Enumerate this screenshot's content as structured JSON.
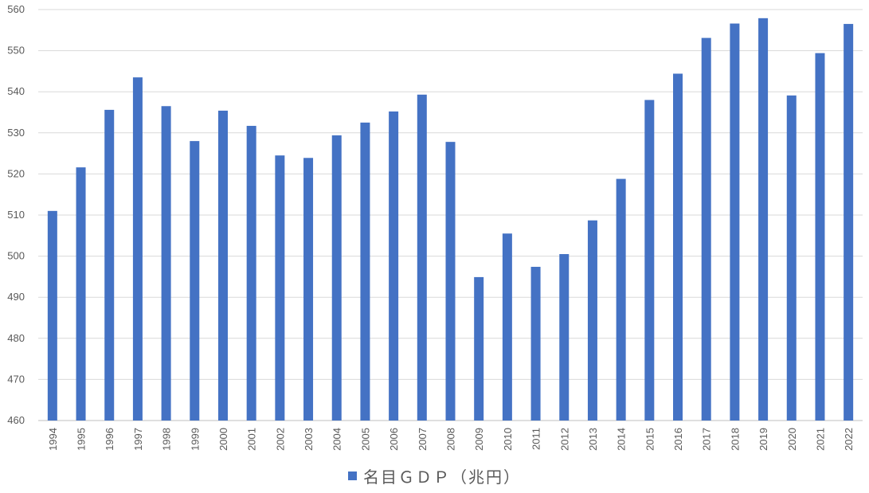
{
  "chart_data": {
    "type": "bar",
    "categories": [
      "1994",
      "1995",
      "1996",
      "1997",
      "1998",
      "1999",
      "2000",
      "2001",
      "2002",
      "2003",
      "2004",
      "2005",
      "2006",
      "2007",
      "2008",
      "2009",
      "2010",
      "2011",
      "2012",
      "2013",
      "2014",
      "2015",
      "2016",
      "2017",
      "2018",
      "2019",
      "2020",
      "2021",
      "2022"
    ],
    "series": [
      {
        "name": "名目ＧＤＰ（兆円）",
        "color": "#4472C4",
        "values": [
          511.0,
          521.6,
          535.6,
          543.5,
          536.5,
          528.0,
          535.4,
          531.7,
          524.5,
          523.9,
          529.4,
          532.5,
          535.2,
          539.3,
          527.8,
          494.9,
          505.5,
          497.4,
          500.5,
          508.7,
          518.8,
          538.0,
          544.4,
          553.1,
          556.6,
          557.9,
          539.1,
          549.4,
          556.5
        ]
      }
    ],
    "title": "",
    "xlabel": "",
    "ylabel": "",
    "ylim": [
      460,
      560
    ],
    "yticks": [
      "460",
      "470",
      "480",
      "490",
      "500",
      "510",
      "520",
      "530",
      "540",
      "550",
      "560"
    ],
    "grid": true,
    "legend_placement": "bottom"
  },
  "legend": {
    "label": "名目ＧＤＰ（兆円）"
  }
}
